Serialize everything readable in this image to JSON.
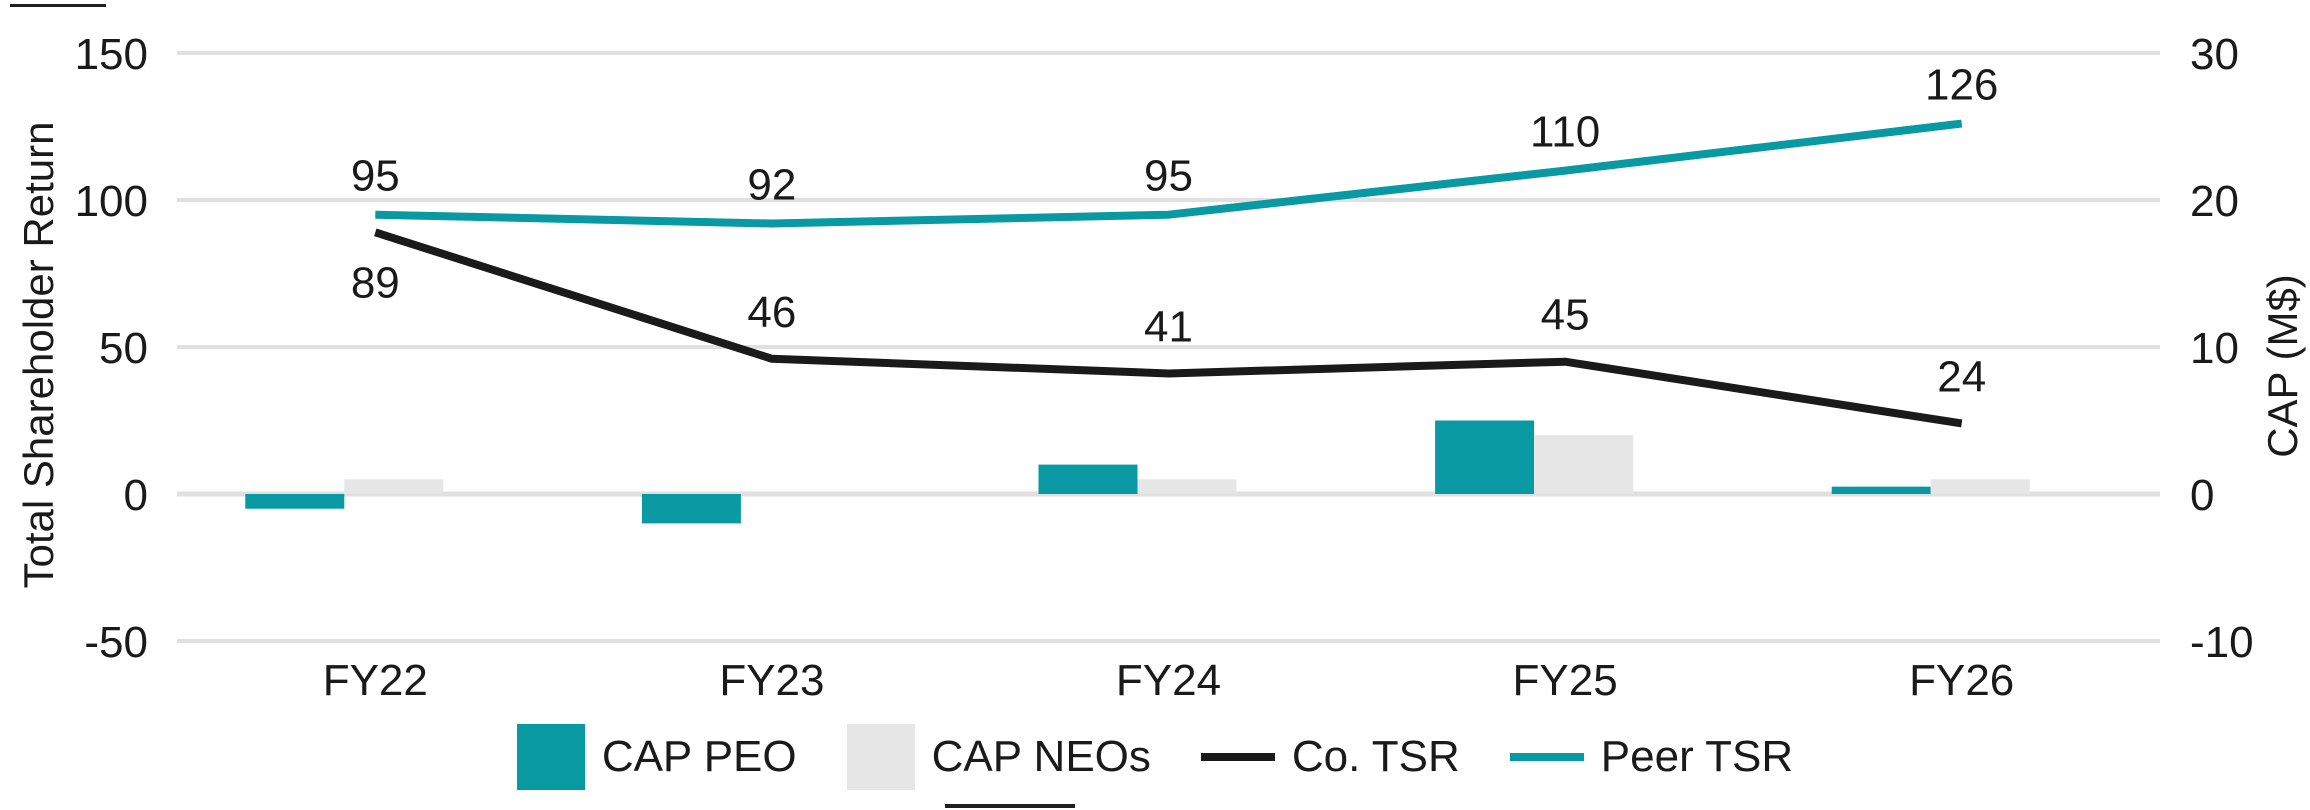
{
  "chart_data": {
    "type": "combo",
    "categories": [
      "FY22",
      "FY23",
      "FY24",
      "FY25",
      "FY26"
    ],
    "series": [
      {
        "name": "CAP PEO",
        "type": "bar",
        "axis": "right",
        "color": "#0999A3",
        "values": [
          -1,
          -2,
          2,
          5,
          0.5
        ]
      },
      {
        "name": "CAP NEOs",
        "type": "bar",
        "axis": "right",
        "color": "#E6E6E6",
        "values": [
          1,
          0,
          1,
          4,
          1
        ]
      },
      {
        "name": "Co. TSR",
        "type": "line",
        "axis": "left",
        "color": "#1A1A1A",
        "values": [
          89,
          46,
          41,
          45,
          24
        ],
        "data_labels": [
          89,
          46,
          41,
          45,
          24
        ],
        "label_side": [
          "below",
          "above",
          "above",
          "above",
          "above"
        ]
      },
      {
        "name": "Peer TSR",
        "type": "line",
        "axis": "left",
        "color": "#0999A3",
        "values": [
          95,
          92,
          95,
          110,
          126
        ],
        "data_labels": [
          95,
          92,
          95,
          110,
          126
        ],
        "label_side": [
          "above",
          "above",
          "above",
          "above",
          "above"
        ]
      }
    ],
    "left_axis": {
      "title": "Total Shareholder Return",
      "ticks": [
        150,
        100,
        50,
        0,
        -50
      ],
      "range": [
        -50,
        150
      ]
    },
    "right_axis": {
      "title": "CAP (M$)",
      "ticks": [
        30,
        20,
        10,
        0,
        -10
      ],
      "range": [
        -10,
        30
      ]
    },
    "grid": true,
    "legend_position": "bottom",
    "colors": {
      "accent_teal": "#0999A3",
      "bar_gray": "#E6E6E6",
      "line_black": "#1A1A1A",
      "gridline": "#E0E0E0",
      "text": "#1A1A1A"
    }
  },
  "legend": {
    "items": [
      {
        "label": "CAP PEO",
        "swatch": "rect",
        "color": "#0999A3"
      },
      {
        "label": "CAP NEOs",
        "swatch": "rect",
        "color": "#E6E6E6"
      },
      {
        "label": "Co. TSR",
        "swatch": "line",
        "color": "#1A1A1A"
      },
      {
        "label": "Peer TSR",
        "swatch": "line",
        "color": "#0999A3"
      }
    ]
  }
}
